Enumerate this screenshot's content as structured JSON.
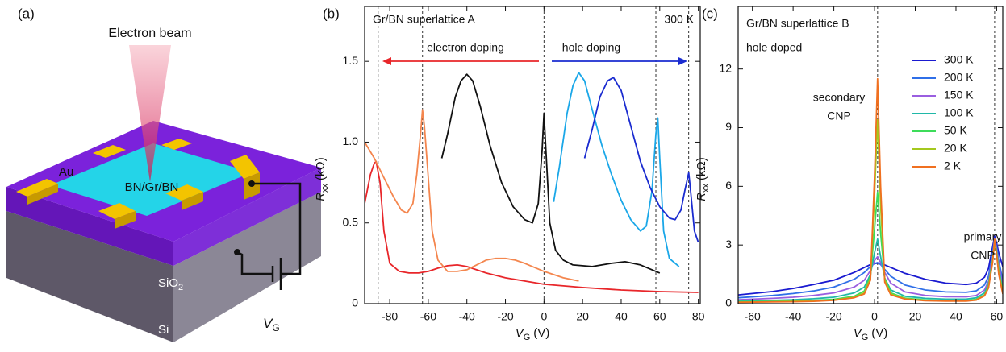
{
  "diagram": {
    "panel_label": "(a)",
    "beam": "Electron beam",
    "au": "Au",
    "stack": "BN/Gr/BN",
    "sio2": "SiO",
    "sio2_sub": "2",
    "si": "Si",
    "vg": "V",
    "vg_sub": "G"
  },
  "chart_data": [
    {
      "type": "line",
      "panel_label": "(b)",
      "annotations": [
        "Gr/BN superlattice A",
        "300 K",
        "electron doping",
        "hole doping"
      ],
      "xlabel": {
        "main": "V",
        "sub": "G",
        "unit": "(V)"
      },
      "ylabel": {
        "main": "R",
        "sub": "xx",
        "unit": "(kΩ)"
      },
      "xlim": [
        -93,
        81
      ],
      "ylim": [
        0,
        1.84
      ],
      "xticks": [
        -80,
        -60,
        -40,
        -20,
        0,
        20,
        40,
        60,
        80
      ],
      "yticks": [
        0,
        0.5,
        {
          "value": 1,
          "label": "1.0"
        },
        1.5
      ],
      "vlines": [
        -86,
        -63,
        0,
        58,
        75
      ],
      "series": [
        {
          "color": "#e8262a",
          "x": [
            -93,
            -90,
            -88,
            -87,
            -85,
            -83,
            -80,
            -75,
            -70,
            -65,
            -60,
            -55,
            -50,
            -45,
            -40,
            -35,
            -30,
            -20,
            -10,
            0,
            10,
            20,
            40,
            60,
            80
          ],
          "values": [
            0.62,
            0.8,
            0.87,
            0.88,
            0.75,
            0.45,
            0.25,
            0.2,
            0.19,
            0.19,
            0.2,
            0.22,
            0.235,
            0.24,
            0.23,
            0.21,
            0.19,
            0.16,
            0.14,
            0.12,
            0.11,
            0.1,
            0.085,
            0.075,
            0.07
          ]
        },
        {
          "color": "#f4864e",
          "x": [
            -93,
            -88,
            -83,
            -78,
            -74,
            -71,
            -68,
            -66,
            -64,
            -63,
            -62,
            -60,
            -58,
            -55,
            -50,
            -45,
            -40,
            -35,
            -30,
            -25,
            -20,
            -15,
            -10,
            0,
            10,
            18
          ],
          "values": [
            1.0,
            0.9,
            0.78,
            0.66,
            0.58,
            0.56,
            0.62,
            0.8,
            1.05,
            1.2,
            1.1,
            0.78,
            0.45,
            0.27,
            0.2,
            0.2,
            0.21,
            0.24,
            0.27,
            0.28,
            0.28,
            0.27,
            0.25,
            0.2,
            0.16,
            0.14
          ]
        },
        {
          "color": "#111111",
          "x": [
            -53,
            -50,
            -46,
            -43,
            -40,
            -37,
            -33,
            -28,
            -22,
            -16,
            -10,
            -6,
            -3,
            -1,
            0,
            1,
            3,
            6,
            10,
            15,
            25,
            35,
            42,
            50,
            60
          ],
          "values": [
            0.9,
            1.05,
            1.28,
            1.38,
            1.42,
            1.38,
            1.22,
            0.98,
            0.75,
            0.6,
            0.52,
            0.5,
            0.62,
            0.95,
            1.18,
            0.95,
            0.5,
            0.33,
            0.27,
            0.24,
            0.23,
            0.25,
            0.26,
            0.24,
            0.19
          ]
        },
        {
          "color": "#1aa7e8",
          "x": [
            5,
            8,
            12,
            15,
            18,
            21,
            25,
            30,
            35,
            40,
            45,
            50,
            53,
            56,
            58,
            59,
            60,
            62,
            65,
            70
          ],
          "values": [
            0.63,
            0.85,
            1.18,
            1.35,
            1.43,
            1.38,
            1.2,
            0.98,
            0.8,
            0.64,
            0.52,
            0.45,
            0.48,
            0.7,
            1.05,
            1.15,
            0.9,
            0.45,
            0.28,
            0.23
          ]
        },
        {
          "color": "#1a2bd0",
          "x": [
            21,
            25,
            29,
            33,
            36,
            40,
            45,
            50,
            55,
            60,
            65,
            68,
            71,
            73,
            75,
            76,
            78,
            80
          ],
          "values": [
            0.9,
            1.08,
            1.28,
            1.38,
            1.4,
            1.32,
            1.1,
            0.88,
            0.72,
            0.6,
            0.53,
            0.52,
            0.58,
            0.7,
            0.81,
            0.7,
            0.45,
            0.38
          ]
        }
      ]
    },
    {
      "type": "line",
      "panel_label": "(c)",
      "annotations": [
        "Gr/BN superlattice B",
        "hole doped",
        "secondary",
        "CNP",
        "primary",
        "CNP"
      ],
      "xlabel": {
        "main": "V",
        "sub": "G",
        "unit": "(V)"
      },
      "ylabel": {
        "main": "R",
        "sub": "xx",
        "unit": "(kΩ)"
      },
      "xlim": [
        -67,
        63
      ],
      "ylim": [
        0,
        15.2
      ],
      "xticks": [
        -60,
        -40,
        -20,
        0,
        20,
        40,
        60
      ],
      "yticks": [
        0,
        3,
        6,
        9,
        12
      ],
      "vlines": [
        1.5,
        59
      ],
      "series": [
        {
          "name": "300 K",
          "color": "#1a1ad0",
          "x": [
            -67,
            -50,
            -40,
            -30,
            -20,
            -10,
            -5,
            -2,
            0,
            1.5,
            3,
            5,
            8,
            15,
            25,
            35,
            45,
            50,
            54,
            56,
            58,
            59,
            60,
            61,
            63
          ],
          "values": [
            0.45,
            0.62,
            0.78,
            0.98,
            1.2,
            1.6,
            1.85,
            2.0,
            2.05,
            2.07,
            2.05,
            1.98,
            1.85,
            1.55,
            1.25,
            1.05,
            0.98,
            1.05,
            1.35,
            1.8,
            2.9,
            3.45,
            3.1,
            2.6,
            1.9
          ]
        },
        {
          "name": "200 K",
          "color": "#2f6fe8",
          "x": [
            -67,
            -50,
            -40,
            -30,
            -20,
            -10,
            -5,
            -2,
            0,
            1.5,
            3,
            5,
            8,
            15,
            25,
            35,
            45,
            50,
            54,
            56,
            58,
            59,
            60,
            61,
            63
          ],
          "values": [
            0.3,
            0.42,
            0.52,
            0.65,
            0.85,
            1.25,
            1.6,
            1.9,
            2.05,
            2.1,
            2.0,
            1.75,
            1.4,
            0.95,
            0.7,
            0.6,
            0.58,
            0.66,
            0.95,
            1.4,
            2.6,
            3.35,
            2.9,
            2.2,
            1.2
          ]
        },
        {
          "name": "150 K",
          "color": "#9a5ee0",
          "x": [
            -67,
            -50,
            -40,
            -30,
            -20,
            -10,
            -5,
            -2,
            0,
            1.5,
            3,
            5,
            8,
            15,
            25,
            35,
            45,
            50,
            54,
            56,
            58,
            59,
            60,
            61,
            63
          ],
          "values": [
            0.2,
            0.27,
            0.33,
            0.42,
            0.55,
            0.85,
            1.2,
            1.7,
            2.2,
            2.4,
            2.1,
            1.6,
            1.05,
            0.6,
            0.42,
            0.36,
            0.35,
            0.42,
            0.7,
            1.15,
            2.4,
            3.3,
            2.8,
            2.0,
            0.9
          ]
        },
        {
          "name": "100 K",
          "color": "#20b8a8",
          "x": [
            -67,
            -50,
            -40,
            -30,
            -20,
            -10,
            -5,
            -2,
            0,
            1.5,
            3,
            5,
            8,
            15,
            25,
            35,
            45,
            50,
            54,
            56,
            58,
            59,
            60,
            61,
            63
          ],
          "values": [
            0.13,
            0.17,
            0.2,
            0.25,
            0.33,
            0.55,
            0.85,
            1.5,
            2.6,
            3.3,
            2.4,
            1.3,
            0.7,
            0.38,
            0.27,
            0.23,
            0.23,
            0.3,
            0.55,
            1.0,
            2.3,
            3.25,
            2.7,
            1.8,
            0.7
          ]
        },
        {
          "name": "50 K",
          "color": "#3ddc5a",
          "x": [
            -67,
            -50,
            -40,
            -30,
            -20,
            -10,
            -5,
            -2,
            0,
            1.5,
            3,
            5,
            8,
            15,
            25,
            35,
            45,
            50,
            54,
            56,
            58,
            59,
            60,
            61,
            63
          ],
          "values": [
            0.1,
            0.12,
            0.14,
            0.17,
            0.22,
            0.38,
            0.65,
            1.4,
            3.8,
            5.7,
            3.6,
            1.3,
            0.55,
            0.28,
            0.19,
            0.16,
            0.16,
            0.22,
            0.45,
            0.9,
            2.2,
            3.2,
            2.6,
            1.7,
            0.6
          ]
        },
        {
          "name": "20 K",
          "color": "#a4c81e",
          "x": [
            -67,
            -50,
            -40,
            -30,
            -20,
            -10,
            -5,
            -2,
            0,
            1.5,
            3,
            5,
            8,
            15,
            25,
            35,
            45,
            50,
            54,
            56,
            58,
            59,
            60,
            61,
            63
          ],
          "values": [
            0.08,
            0.1,
            0.12,
            0.14,
            0.19,
            0.33,
            0.55,
            1.3,
            5.5,
            9.4,
            5.0,
            1.2,
            0.5,
            0.25,
            0.17,
            0.14,
            0.14,
            0.2,
            0.42,
            0.85,
            2.15,
            3.15,
            2.55,
            1.6,
            0.55
          ]
        },
        {
          "name": "2 K",
          "color": "#f07020",
          "x": [
            -67,
            -50,
            -40,
            -30,
            -20,
            -10,
            -5,
            -2,
            0,
            1.5,
            3,
            5,
            8,
            15,
            25,
            35,
            45,
            50,
            54,
            56,
            58,
            59,
            60,
            61,
            63
          ],
          "values": [
            0.07,
            0.09,
            0.1,
            0.12,
            0.17,
            0.3,
            0.5,
            1.2,
            6.5,
            11.5,
            6.0,
            1.1,
            0.45,
            0.23,
            0.15,
            0.13,
            0.13,
            0.18,
            0.4,
            0.8,
            2.1,
            3.3,
            2.5,
            1.5,
            0.5
          ]
        }
      ]
    }
  ]
}
